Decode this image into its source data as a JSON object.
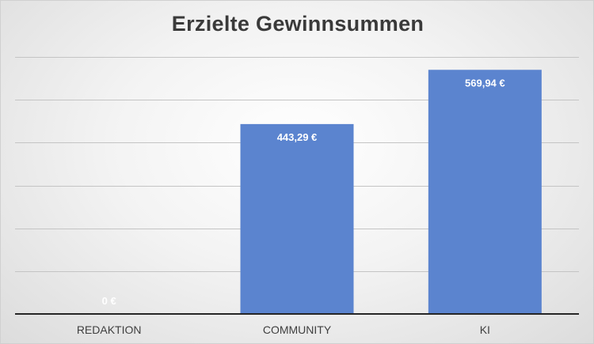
{
  "chart_data": {
    "type": "bar",
    "title": "Erzielte Gewinnsummen",
    "categories": [
      "REDAKTION",
      "COMMUNITY",
      "KI"
    ],
    "values": [
      0,
      443.29,
      569.94
    ],
    "data_labels": [
      "0 €",
      "443,29 €",
      "569,94 €"
    ],
    "xlabel": "",
    "ylabel": "",
    "ylim": [
      0,
      600
    ],
    "grid": true,
    "legend": "none",
    "bar_color": "#5b84cf"
  }
}
